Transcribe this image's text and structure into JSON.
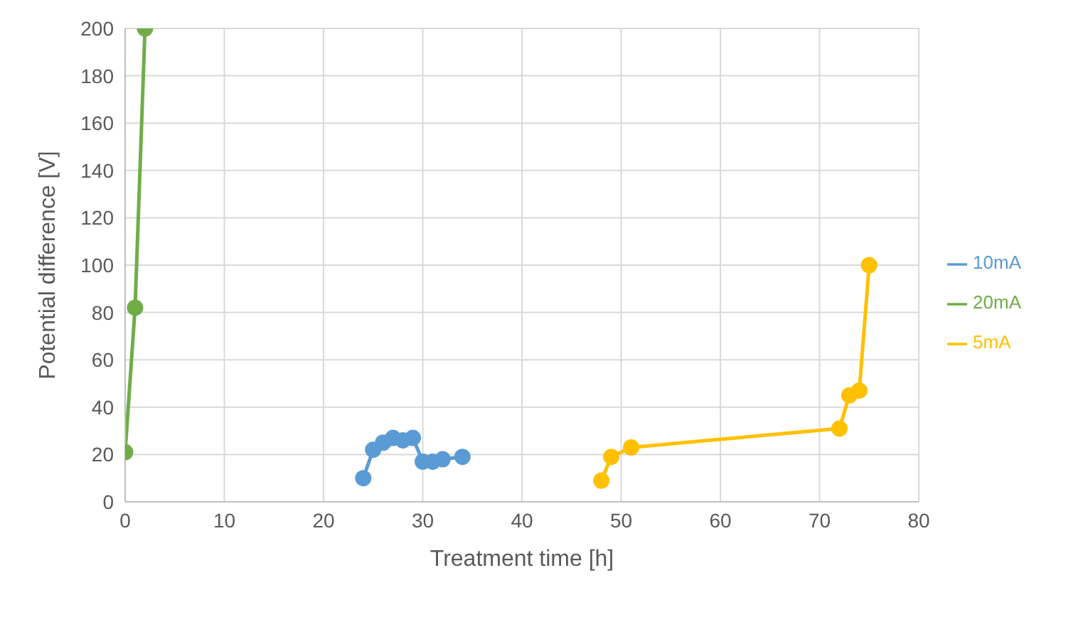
{
  "chart_data": {
    "type": "line",
    "xlabel": "Treatment time [h]",
    "ylabel": "Potential difference [V]",
    "xlim": [
      0,
      80
    ],
    "xticks": [
      0,
      10,
      20,
      30,
      40,
      50,
      60,
      70,
      80
    ],
    "ylim": [
      0,
      200
    ],
    "yticks": [
      0,
      20,
      40,
      60,
      80,
      100,
      120,
      140,
      160,
      180,
      200
    ],
    "grid": true,
    "legend": "right",
    "marker": "circle",
    "series": [
      {
        "name": "20mA",
        "color": "#70ad47",
        "x": [
          0,
          1,
          2
        ],
        "values": [
          21,
          82,
          200
        ]
      },
      {
        "name": "10mA",
        "color": "#5b9bd5",
        "x": [
          24,
          25,
          26,
          27,
          28,
          29,
          30,
          31,
          32,
          34
        ],
        "values": [
          10,
          22,
          25,
          27,
          26,
          27,
          17,
          17,
          18,
          19
        ]
      },
      {
        "name": "5mA",
        "color": "#ffc000",
        "x": [
          48,
          49,
          51,
          72,
          73,
          74,
          75
        ],
        "values": [
          9,
          19,
          23,
          31,
          45,
          47,
          100
        ]
      }
    ]
  }
}
